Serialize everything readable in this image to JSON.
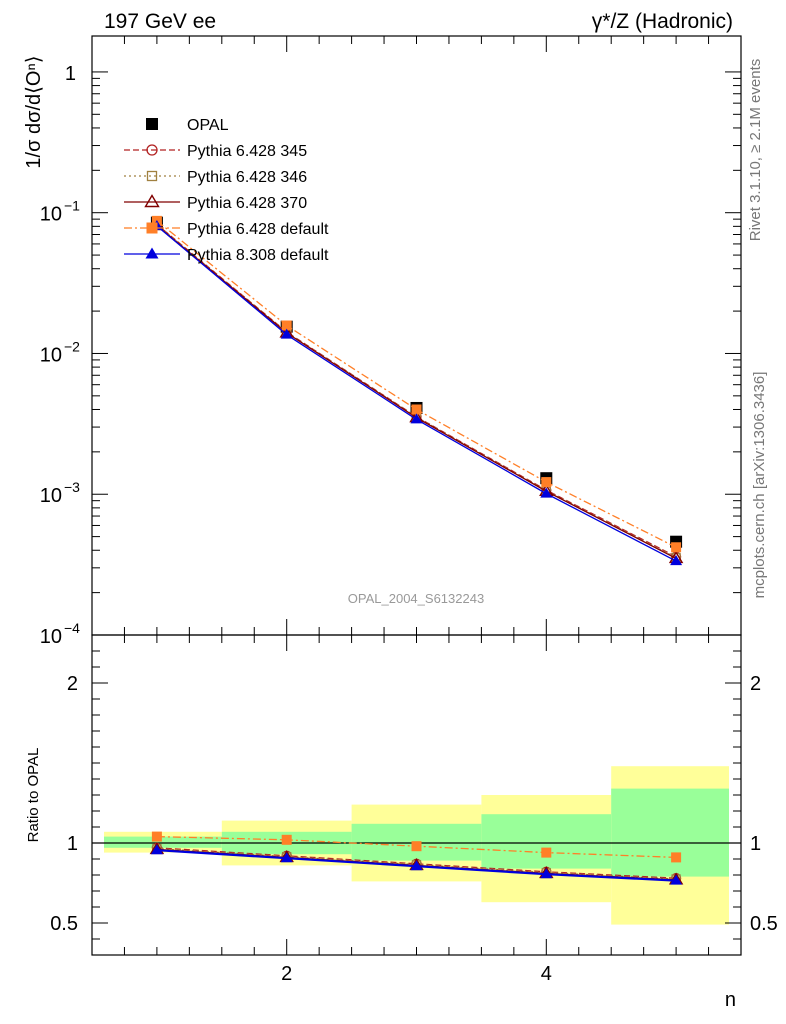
{
  "header": {
    "left": "197 GeV ee",
    "right": "γ*/Z (Hadronic)"
  },
  "side_text": {
    "rivet": "Rivet 3.1.10, ≥ 2.1M events",
    "mcplots": "mcplots.cern.ch [arXiv:1306.3436]"
  },
  "watermark": "OPAL_2004_S6132243",
  "chart_data": [
    {
      "type": "line",
      "panel": "main",
      "ylabel": "1/σ dσ/d⟨Oⁿ⟩",
      "yscale": "log",
      "ylim": [
        0.0001,
        1.8
      ],
      "xlim": [
        0.5,
        5.5
      ],
      "x": [
        1,
        2,
        3,
        4,
        5
      ],
      "y_ticks": [
        {
          "value": 1,
          "mantissa": "1",
          "exp": ""
        },
        {
          "value": 0.1,
          "mantissa": "10",
          "exp": "−1"
        },
        {
          "value": 0.01,
          "mantissa": "10",
          "exp": "−2"
        },
        {
          "value": 0.001,
          "mantissa": "10",
          "exp": "−3"
        },
        {
          "value": 0.0001,
          "mantissa": "10",
          "exp": "−4"
        }
      ],
      "legend_position": "upper-left",
      "series": [
        {
          "name": "OPAL",
          "kind": "data",
          "color": "#000000",
          "marker": "square-filled",
          "values": [
            0.085,
            0.0155,
            0.0041,
            0.0013,
            0.00046
          ]
        },
        {
          "name": "Pythia 6.428 345",
          "kind": "mc",
          "color": "#b22222",
          "dash": "6,3",
          "marker": "circle-open",
          "values": [
            0.0825,
            0.0142,
            0.00355,
            0.00107,
            0.00036
          ]
        },
        {
          "name": "Pythia 6.428 346",
          "kind": "mc",
          "color": "#a08040",
          "dash": "2,3",
          "marker": "square-open",
          "values": [
            0.082,
            0.0141,
            0.00353,
            0.00106,
            0.000355
          ]
        },
        {
          "name": "Pythia 6.428 370",
          "kind": "mc",
          "color": "#800000",
          "dash": "",
          "marker": "triangle-open",
          "values": [
            0.081,
            0.014,
            0.0035,
            0.00105,
            0.00035
          ]
        },
        {
          "name": "Pythia 6.428 default",
          "kind": "mc",
          "color": "#ff7f27",
          "dash": "8,3,2,3",
          "marker": "square-filled",
          "values": [
            0.0875,
            0.0158,
            0.004,
            0.00122,
            0.00042
          ]
        },
        {
          "name": "Pythia 8.308 default",
          "kind": "mc",
          "color": "#0000dd",
          "dash": "",
          "marker": "triangle-filled",
          "values": [
            0.0805,
            0.0136,
            0.0034,
            0.00101,
            0.000335
          ]
        }
      ]
    },
    {
      "type": "line",
      "panel": "ratio",
      "ylabel": "Ratio to OPAL",
      "xlabel": "n",
      "ylim": [
        0.3,
        2.3
      ],
      "xlim": [
        0.5,
        5.5
      ],
      "x": [
        1,
        2,
        3,
        4,
        5
      ],
      "x_ticks": [
        2,
        4
      ],
      "y_ticks": [
        0.5,
        1,
        2
      ],
      "bands": [
        {
          "x_from": 0.5,
          "x_to": 1.5,
          "yellow": [
            0.94,
            1.07
          ],
          "green": [
            0.97,
            1.04
          ]
        },
        {
          "x_from": 1.5,
          "x_to": 2.5,
          "yellow": [
            0.86,
            1.14
          ],
          "green": [
            0.93,
            1.07
          ]
        },
        {
          "x_from": 2.5,
          "x_to": 3.5,
          "yellow": [
            0.76,
            1.24
          ],
          "green": [
            0.89,
            1.12
          ]
        },
        {
          "x_from": 3.5,
          "x_to": 4.5,
          "yellow": [
            0.63,
            1.3
          ],
          "green": [
            0.84,
            1.18
          ]
        },
        {
          "x_from": 4.5,
          "x_to": 5.5,
          "yellow": [
            0.49,
            1.48
          ],
          "green": [
            0.79,
            1.34
          ]
        }
      ],
      "series": [
        {
          "name": "Pythia 6.428 345",
          "color": "#b22222",
          "dash": "6,3",
          "marker": "circle-open",
          "values": [
            0.97,
            0.92,
            0.87,
            0.82,
            0.78
          ]
        },
        {
          "name": "Pythia 6.428 346",
          "color": "#a08040",
          "dash": "2,3",
          "marker": "square-open",
          "values": [
            0.965,
            0.915,
            0.865,
            0.815,
            0.775
          ]
        },
        {
          "name": "Pythia 6.428 370",
          "color": "#800000",
          "dash": "",
          "marker": "triangle-open",
          "values": [
            0.96,
            0.91,
            0.86,
            0.81,
            0.77
          ]
        },
        {
          "name": "Pythia 6.428 default",
          "color": "#ff7f27",
          "dash": "8,3,2,3",
          "marker": "square-filled",
          "values": [
            1.04,
            1.02,
            0.98,
            0.94,
            0.91
          ]
        },
        {
          "name": "Pythia 8.308 default",
          "color": "#0000dd",
          "dash": "",
          "marker": "triangle-filled",
          "values": [
            0.955,
            0.905,
            0.855,
            0.805,
            0.765
          ]
        }
      ]
    }
  ]
}
